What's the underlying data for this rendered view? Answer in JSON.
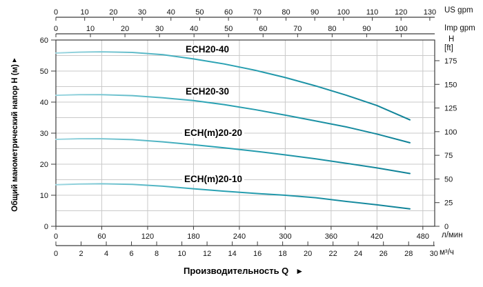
{
  "chart": {
    "y_left_title": "Общий манометрический напор H (м)",
    "y_left_arrow": "▲",
    "x_title": "Производительность Q",
    "x_title_arrow": "►",
    "unit_labels": {
      "us_gpm": "US gpm",
      "imp_gpm": "Imp gpm",
      "h": "H",
      "ft": "[ft]",
      "l_min": "л/мин",
      "m3_h": "м³/ч"
    }
  },
  "chart_data": {
    "type": "line",
    "title": "",
    "xlabel": "Производительность Q",
    "ylabel": "Общий манометрический напор H (м)",
    "x_unit_primary": "л/мин",
    "y_unit_primary": "м",
    "grid": true,
    "axes": {
      "top_us_gpm": {
        "label": "US gpm",
        "ticks": [
          0,
          10,
          20,
          30,
          40,
          50,
          60,
          70,
          80,
          90,
          100,
          110,
          120,
          130
        ],
        "end_value": 131.7
      },
      "top_imp_gpm": {
        "label": "Imp gpm",
        "ticks": [
          0,
          10,
          20,
          30,
          40,
          50,
          60,
          70,
          80,
          90,
          100
        ],
        "end_value": 109.7
      },
      "left_h_m": {
        "label": "H (м)",
        "ticks": [
          0,
          10,
          20,
          30,
          40,
          50,
          60
        ],
        "range": [
          0,
          60
        ],
        "grid_step": 5
      },
      "right_h_ft": {
        "label": "H [ft]",
        "ticks": [
          0,
          25,
          50,
          75,
          100,
          125,
          150,
          175
        ],
        "end_value": 196.85
      },
      "bottom_l_min": {
        "label": "л/мин",
        "ticks": [
          0,
          60,
          120,
          180,
          240,
          300,
          360,
          420,
          480
        ],
        "end_value": 495.5
      },
      "bottom_m3_h": {
        "label": "м³/ч",
        "ticks": [
          0,
          2,
          4,
          6,
          8,
          10,
          12,
          14,
          16,
          18,
          20,
          22,
          24,
          26,
          28,
          30
        ],
        "end_value": 30.07
      }
    },
    "series": [
      {
        "label": "ECH20-40",
        "points": [
          [
            0,
            55.8
          ],
          [
            30,
            56.1
          ],
          [
            60,
            56.2
          ],
          [
            100,
            56.0
          ],
          [
            140,
            55.3
          ],
          [
            180,
            53.9
          ],
          [
            220,
            52.3
          ],
          [
            260,
            50.3
          ],
          [
            300,
            47.9
          ],
          [
            340,
            45.2
          ],
          [
            380,
            42.2
          ],
          [
            420,
            38.9
          ],
          [
            463,
            34.3
          ]
        ]
      },
      {
        "label": "ECH20-30",
        "points": [
          [
            0,
            42.2
          ],
          [
            30,
            42.4
          ],
          [
            60,
            42.4
          ],
          [
            100,
            42.1
          ],
          [
            140,
            41.4
          ],
          [
            180,
            40.5
          ],
          [
            220,
            39.2
          ],
          [
            260,
            37.6
          ],
          [
            300,
            35.8
          ],
          [
            340,
            33.9
          ],
          [
            380,
            32.0
          ],
          [
            420,
            29.7
          ],
          [
            463,
            26.9
          ]
        ]
      },
      {
        "label": "ECH(m)20-20",
        "points": [
          [
            0,
            28.0
          ],
          [
            30,
            28.2
          ],
          [
            60,
            28.2
          ],
          [
            100,
            27.9
          ],
          [
            140,
            27.2
          ],
          [
            180,
            26.3
          ],
          [
            220,
            25.3
          ],
          [
            260,
            24.2
          ],
          [
            300,
            23.0
          ],
          [
            340,
            21.7
          ],
          [
            380,
            20.3
          ],
          [
            420,
            18.8
          ],
          [
            463,
            17.0
          ]
        ]
      },
      {
        "label": "ECH(m)20-10",
        "points": [
          [
            0,
            13.4
          ],
          [
            30,
            13.6
          ],
          [
            60,
            13.7
          ],
          [
            100,
            13.5
          ],
          [
            140,
            12.9
          ],
          [
            180,
            12.1
          ],
          [
            220,
            11.3
          ],
          [
            260,
            10.6
          ],
          [
            300,
            10.0
          ],
          [
            340,
            9.2
          ],
          [
            380,
            8.0
          ],
          [
            420,
            6.9
          ],
          [
            463,
            5.6
          ]
        ]
      }
    ],
    "colors": {
      "curve_start": "#9ed7e1",
      "curve_mid": "#2aa3b4",
      "curve_end": "#0b7d93",
      "grid": "#c9c9c9",
      "axis": "#3b3b3b",
      "text": "#111111"
    }
  }
}
